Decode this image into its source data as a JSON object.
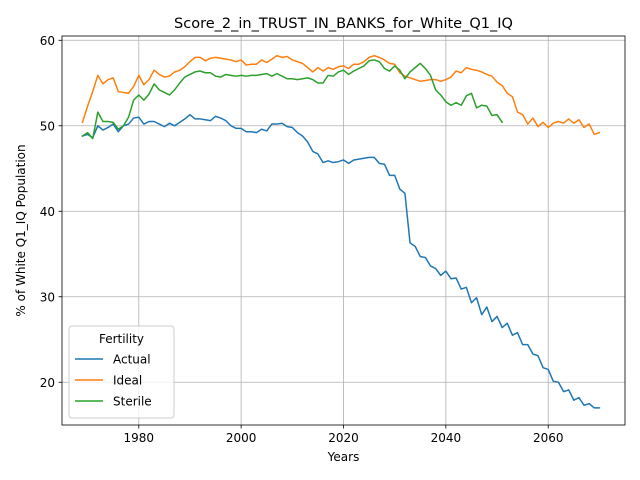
{
  "chart_data": {
    "type": "line",
    "title": "Score_2_in_TRUST_IN_BANKS_for_White_Q1_IQ",
    "xlabel": "Years",
    "ylabel": "% of White Q1_IQ Population",
    "xlim": [
      1965,
      2075
    ],
    "ylim": [
      15,
      60.5
    ],
    "xticks": [
      1980,
      2000,
      2020,
      2040,
      2060
    ],
    "yticks": [
      20,
      30,
      40,
      50,
      60
    ],
    "grid": true,
    "legend": {
      "title": "Fertility",
      "position": "lower-left"
    },
    "series": [
      {
        "name": "Actual",
        "color": "#1f77b4",
        "x": [
          1969,
          1970,
          1971,
          1972,
          1973,
          1974,
          1975,
          1976,
          1977,
          1978,
          1979,
          1980,
          1981,
          1982,
          1983,
          1984,
          1985,
          1986,
          1987,
          1988,
          1989,
          1990,
          1991,
          1992,
          1993,
          1994,
          1995,
          1996,
          1997,
          1998,
          1999,
          2000,
          2001,
          2002,
          2003,
          2004,
          2005,
          2006,
          2007,
          2008,
          2009,
          2010,
          2011,
          2012,
          2013,
          2014,
          2015,
          2016,
          2017,
          2018,
          2019,
          2020,
          2021,
          2022,
          2023,
          2024,
          2025,
          2026,
          2027,
          2028,
          2029,
          2030,
          2031,
          2032,
          2033,
          2034,
          2035,
          2036,
          2037,
          2038,
          2039,
          2040,
          2041,
          2042,
          2043,
          2044,
          2045,
          2046,
          2047,
          2048,
          2049,
          2050,
          2051,
          2052,
          2053,
          2054,
          2055,
          2056,
          2057,
          2058,
          2059,
          2060,
          2061,
          2062,
          2063,
          2064,
          2065,
          2066,
          2067,
          2068,
          2069,
          2070
        ],
        "values": [
          48.8,
          49.0,
          48.6,
          50.0,
          49.5,
          49.8,
          50.2,
          49.3,
          50.0,
          50.2,
          50.9,
          51.0,
          50.2,
          50.5,
          50.5,
          50.2,
          49.9,
          50.3,
          50.0,
          50.4,
          50.8,
          51.3,
          50.8,
          50.8,
          50.7,
          50.6,
          51.1,
          50.9,
          50.6,
          50.0,
          49.7,
          49.7,
          49.3,
          49.3,
          49.2,
          49.6,
          49.4,
          50.2,
          50.2,
          50.3,
          49.9,
          49.8,
          49.2,
          48.8,
          48.1,
          47.0,
          46.7,
          45.7,
          45.9,
          45.7,
          45.8,
          46.0,
          45.6,
          46.0,
          46.1,
          46.2,
          46.3,
          46.3,
          45.6,
          45.5,
          44.2,
          44.2,
          42.6,
          42.1,
          36.3,
          35.9,
          34.7,
          34.6,
          33.6,
          33.3,
          32.5,
          33.0,
          32.1,
          32.2,
          30.9,
          31.1,
          29.3,
          29.9,
          27.9,
          28.8,
          27.1,
          27.7,
          26.4,
          26.9,
          25.5,
          25.8,
          24.4,
          24.4,
          23.3,
          23.1,
          21.7,
          21.5,
          20.1,
          20.0,
          18.9,
          19.1,
          17.9,
          18.2,
          17.3,
          17.5,
          17.0,
          17.0
        ]
      },
      {
        "name": "Ideal",
        "color": "#ff7f0e",
        "x": [
          1969,
          1970,
          1971,
          1972,
          1973,
          1974,
          1975,
          1976,
          1977,
          1978,
          1979,
          1980,
          1981,
          1982,
          1983,
          1984,
          1985,
          1986,
          1987,
          1988,
          1989,
          1990,
          1991,
          1992,
          1993,
          1994,
          1995,
          1996,
          1997,
          1998,
          1999,
          2000,
          2001,
          2002,
          2003,
          2004,
          2005,
          2006,
          2007,
          2008,
          2009,
          2010,
          2011,
          2012,
          2013,
          2014,
          2015,
          2016,
          2017,
          2018,
          2019,
          2020,
          2021,
          2022,
          2023,
          2024,
          2025,
          2026,
          2027,
          2028,
          2029,
          2030,
          2031,
          2032,
          2033,
          2034,
          2035,
          2036,
          2037,
          2038,
          2039,
          2040,
          2041,
          2042,
          2043,
          2044,
          2045,
          2046,
          2047,
          2048,
          2049,
          2050,
          2051,
          2052,
          2053,
          2054,
          2055,
          2056,
          2057,
          2058,
          2059,
          2060,
          2061,
          2062,
          2063,
          2064,
          2065,
          2066,
          2067,
          2068,
          2069,
          2070
        ],
        "values": [
          50.4,
          52.3,
          54.0,
          55.9,
          54.9,
          55.4,
          55.6,
          54.0,
          53.9,
          53.8,
          54.6,
          55.9,
          54.8,
          55.4,
          56.5,
          56.0,
          55.7,
          55.8,
          56.3,
          56.5,
          56.9,
          57.5,
          58.0,
          58.0,
          57.6,
          57.9,
          58.0,
          57.9,
          57.8,
          57.7,
          57.5,
          57.7,
          57.1,
          57.2,
          57.2,
          57.7,
          57.4,
          57.8,
          58.2,
          58.0,
          58.1,
          57.7,
          57.5,
          57.3,
          56.8,
          56.3,
          56.8,
          56.4,
          56.8,
          56.6,
          56.9,
          57.0,
          56.7,
          57.2,
          57.2,
          57.5,
          58.0,
          58.2,
          58.0,
          57.7,
          57.3,
          57.2,
          56.2,
          55.8,
          55.6,
          55.4,
          55.2,
          55.3,
          55.4,
          55.4,
          55.2,
          55.4,
          55.7,
          56.4,
          56.2,
          56.8,
          56.6,
          56.5,
          56.3,
          56.0,
          55.8,
          55.1,
          54.7,
          53.8,
          53.4,
          51.6,
          51.3,
          50.2,
          50.9,
          49.9,
          50.4,
          49.8,
          50.3,
          50.5,
          50.3,
          50.8,
          50.3,
          50.7,
          49.8,
          50.2,
          49.0,
          49.2
        ]
      },
      {
        "name": "Sterile",
        "color": "#2ca02c",
        "x": [
          1969,
          1970,
          1971,
          1972,
          1973,
          1974,
          1975,
          1976,
          1977,
          1978,
          1979,
          1980,
          1981,
          1982,
          1983,
          1984,
          1985,
          1986,
          1987,
          1988,
          1989,
          1990,
          1991,
          1992,
          1993,
          1994,
          1995,
          1996,
          1997,
          1998,
          1999,
          2000,
          2001,
          2002,
          2003,
          2004,
          2005,
          2006,
          2007,
          2008,
          2009,
          2010,
          2011,
          2012,
          2013,
          2014,
          2015,
          2016,
          2017,
          2018,
          2019,
          2020,
          2021,
          2022,
          2023,
          2024,
          2025,
          2026,
          2027,
          2028,
          2029,
          2030,
          2031,
          2032,
          2033,
          2034,
          2035,
          2036,
          2037,
          2038,
          2039,
          2040,
          2041,
          2042,
          2043,
          2044,
          2045,
          2046,
          2047,
          2048,
          2049,
          2050,
          2051
        ],
        "values": [
          48.8,
          49.2,
          48.5,
          51.6,
          50.5,
          50.5,
          50.4,
          49.6,
          50.0,
          51.0,
          53.0,
          53.6,
          53.0,
          53.7,
          54.9,
          54.2,
          53.9,
          53.6,
          54.2,
          55.0,
          55.7,
          56.0,
          56.3,
          56.4,
          56.2,
          56.2,
          55.8,
          55.7,
          56.0,
          55.9,
          55.8,
          55.9,
          55.8,
          55.9,
          55.9,
          56.0,
          56.1,
          55.8,
          56.1,
          55.8,
          55.5,
          55.5,
          55.4,
          55.5,
          55.6,
          55.4,
          55.0,
          55.0,
          55.9,
          55.8,
          56.3,
          56.5,
          56.0,
          56.4,
          56.7,
          57.0,
          57.6,
          57.7,
          57.5,
          56.7,
          56.4,
          57.0,
          56.5,
          55.5,
          56.3,
          56.8,
          57.3,
          56.7,
          55.9,
          54.2,
          53.6,
          52.8,
          52.4,
          52.7,
          52.4,
          53.5,
          53.8,
          52.1,
          52.4,
          52.3,
          51.2,
          51.3,
          50.4
        ]
      }
    ]
  }
}
